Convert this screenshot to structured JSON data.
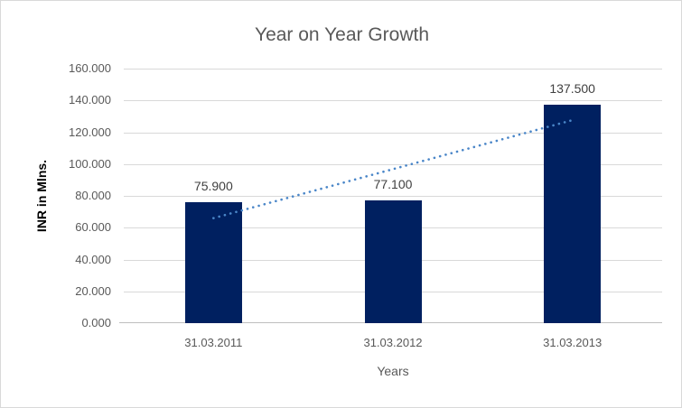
{
  "chart": {
    "border_color": "#D9D9D9",
    "background": "#FFFFFF"
  },
  "chart_data": {
    "type": "bar",
    "title": "Year on Year Growth",
    "xlabel": "Years",
    "ylabel": "INR in Mlns.",
    "categories": [
      "31.03.2011",
      "31.03.2012",
      "31.03.2013"
    ],
    "values": [
      75.9,
      77.1,
      137.5
    ],
    "data_labels": [
      "75.900",
      "77.100",
      "137.500"
    ],
    "ylim": [
      0,
      160
    ],
    "ytick_step": 20,
    "ytick_labels": [
      "0.000",
      "20.000",
      "40.000",
      "60.000",
      "80.000",
      "100.000",
      "120.000",
      "140.000",
      "160.000"
    ],
    "grid": true,
    "legend": "none",
    "bar_color": "#002060",
    "gridline_color": "#D9D9D9",
    "axis_line_color": "#BFBFBF",
    "title_color": "#595959",
    "tick_color": "#595959",
    "data_label_color": "#404040",
    "trendline": {
      "type": "linear",
      "style": "dotted",
      "color": "#4A86C8",
      "start_value": 66.0,
      "end_value": 127.6
    }
  }
}
